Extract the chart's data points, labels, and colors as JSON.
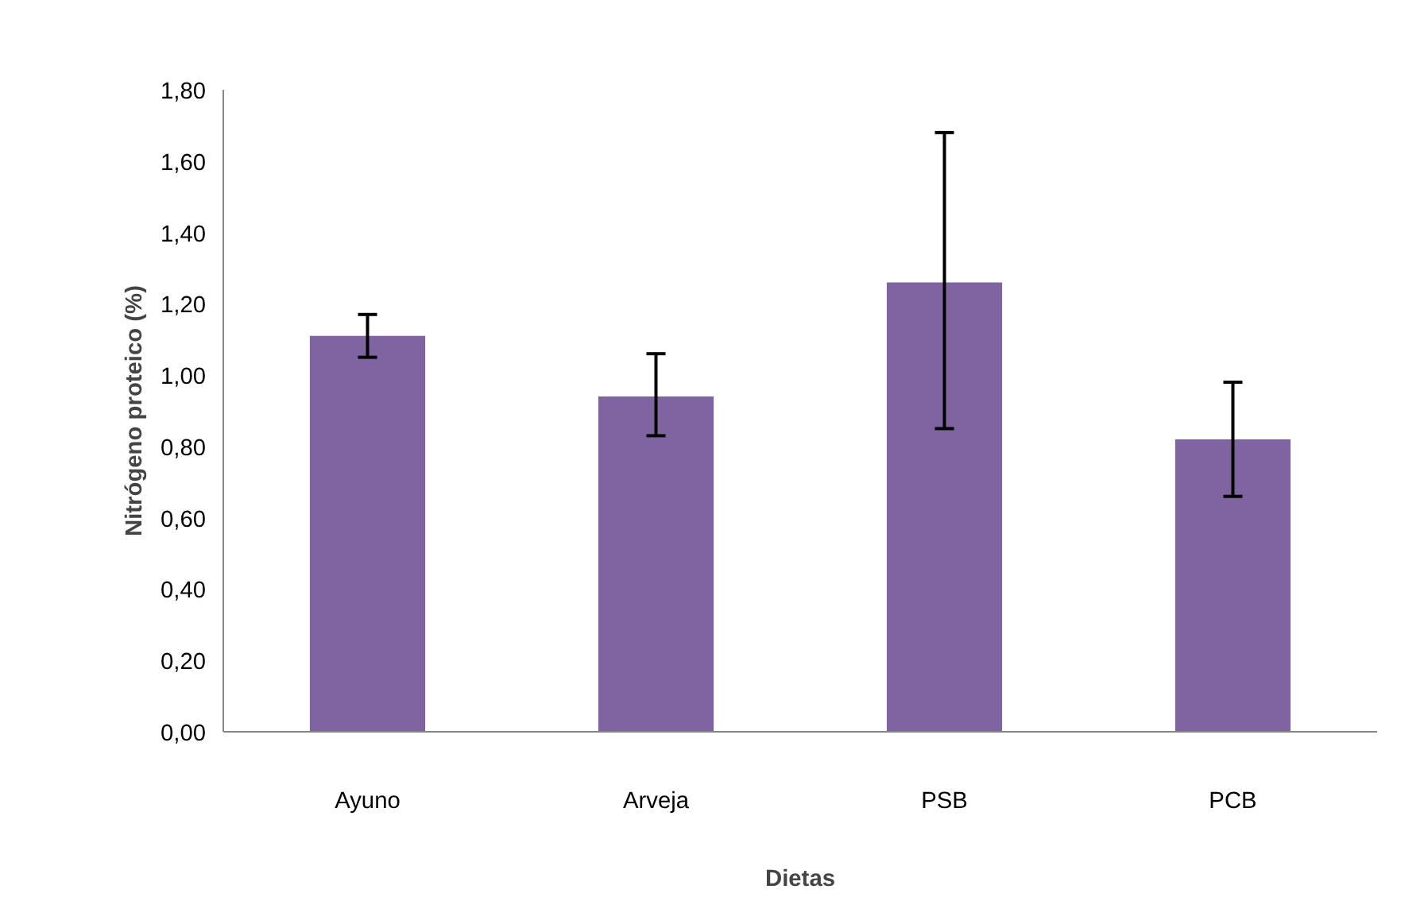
{
  "chart_data": {
    "type": "bar",
    "xlabel": "Dietas",
    "ylabel": "Nitrógeno proteico (%)",
    "categories": [
      "Ayuno",
      "Arveja",
      "PSB",
      "PCB"
    ],
    "values": [
      1.11,
      0.94,
      1.26,
      0.82
    ],
    "errors": [
      [
        1.05,
        1.17
      ],
      [
        0.83,
        1.06
      ],
      [
        0.85,
        1.68
      ],
      [
        0.66,
        0.98
      ]
    ],
    "color": "#8064a2",
    "ylim": [
      0,
      1.8
    ],
    "yticks": [
      {
        "value": 0,
        "label": "0,00"
      },
      {
        "value": 0.2,
        "label": "0,20"
      },
      {
        "value": 0.4,
        "label": "0,40"
      },
      {
        "value": 0.6,
        "label": "0,60"
      },
      {
        "value": 0.8,
        "label": "0,80"
      },
      {
        "value": 1.0,
        "label": "1,00"
      },
      {
        "value": 1.2,
        "label": "1,20"
      },
      {
        "value": 1.4,
        "label": "1,40"
      },
      {
        "value": 1.6,
        "label": "1,60"
      },
      {
        "value": 1.8,
        "label": "1,80"
      }
    ],
    "grid": false
  }
}
